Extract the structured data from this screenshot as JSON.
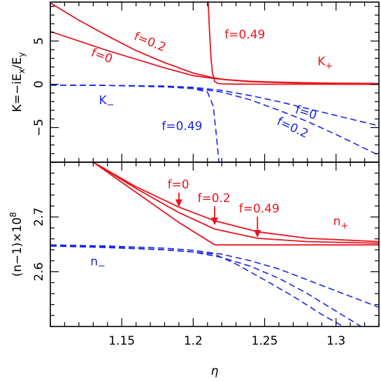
{
  "colors": {
    "K_plus": "#e8141e",
    "K_minus": "#1a26e6"
  },
  "chart_data": [
    {
      "type": "line",
      "ylabel": "K=−iE_x/E_y",
      "xlim": [
        1.1,
        1.33
      ],
      "ylim": [
        -9,
        9.5
      ],
      "yticks": [
        {
          "v": 5,
          "label": "5"
        },
        {
          "v": 0,
          "label": "0"
        },
        {
          "v": -5,
          "label": "−5"
        }
      ],
      "annotations": [
        {
          "text": "f=0.2",
          "x": 1.158,
          "y": 5.2,
          "rot": 22,
          "color": "red"
        },
        {
          "text": "f=0",
          "x": 1.128,
          "y": 3.3,
          "rot": 20,
          "color": "red"
        },
        {
          "text": "f=0.49",
          "x": 1.222,
          "y": 5.3,
          "rot": 0,
          "color": "red"
        },
        {
          "text": "K+",
          "x": 1.287,
          "y": 2.2,
          "rot": 0,
          "color": "red"
        },
        {
          "text": "K−",
          "x": 1.134,
          "y": -2.3,
          "rot": 0,
          "color": "blue"
        },
        {
          "text": "f=0",
          "x": 1.271,
          "y": -3.3,
          "rot": 18,
          "color": "blue"
        },
        {
          "text": "f=0.2",
          "x": 1.258,
          "y": -4.6,
          "rot": 25,
          "color": "blue"
        },
        {
          "text": "f=0.49",
          "x": 1.178,
          "y": -5.3,
          "rot": 0,
          "color": "blue"
        }
      ],
      "series": [
        {
          "style": "solid",
          "color": "red",
          "x": [
            1.1,
            1.12,
            1.14,
            1.16,
            1.18,
            1.2,
            1.213,
            1.222,
            1.24,
            1.26,
            1.28,
            1.3,
            1.33
          ],
          "y": [
            6.1,
            5.0,
            3.9,
            2.9,
            1.9,
            1.0,
            0.7,
            0.55,
            0.35,
            0.25,
            0.18,
            0.13,
            0.1
          ]
        },
        {
          "style": "solid",
          "color": "red",
          "x": [
            1.1,
            1.12,
            1.14,
            1.16,
            1.18,
            1.2,
            1.213,
            1.222,
            1.24,
            1.26,
            1.28,
            1.3,
            1.33
          ],
          "y": [
            9.4,
            7.4,
            5.6,
            3.9,
            2.5,
            1.3,
            0.8,
            0.55,
            0.3,
            0.2,
            0.13,
            0.09,
            0.06
          ]
        },
        {
          "style": "solid",
          "color": "red",
          "x": [
            1.2105,
            1.2115,
            1.2125,
            1.2135,
            1.215,
            1.217,
            1.22,
            1.23,
            1.25,
            1.28,
            1.33
          ],
          "y": [
            9.5,
            6.0,
            3.0,
            1.3,
            0.35,
            0.12,
            0.05,
            0.02,
            0.01,
            0.005,
            0.0
          ]
        },
        {
          "style": "dash",
          "color": "blue",
          "x": [
            1.1,
            1.14,
            1.18,
            1.2,
            1.22,
            1.24,
            1.26,
            1.28,
            1.3,
            1.33
          ],
          "y": [
            -0.1,
            -0.12,
            -0.2,
            -0.35,
            -0.7,
            -1.3,
            -2.0,
            -2.8,
            -3.6,
            -4.8
          ]
        },
        {
          "style": "dash",
          "color": "blue",
          "x": [
            1.1,
            1.14,
            1.18,
            1.2,
            1.22,
            1.24,
            1.26,
            1.28,
            1.3,
            1.33
          ],
          "y": [
            -0.1,
            -0.13,
            -0.25,
            -0.45,
            -0.9,
            -1.8,
            -3.0,
            -4.3,
            -5.8,
            -8.2
          ]
        },
        {
          "style": "dash",
          "color": "blue",
          "x": [
            1.1,
            1.14,
            1.18,
            1.2,
            1.21,
            1.214,
            1.216,
            1.218
          ],
          "y": [
            -0.1,
            -0.12,
            -0.3,
            -0.5,
            -0.9,
            -2.5,
            -5.5,
            -9.0
          ]
        }
      ]
    },
    {
      "type": "line",
      "xlabel": "η",
      "ylabel": "(n−1)×10^8",
      "xlim": [
        1.1,
        1.33
      ],
      "ylim": [
        2.5,
        2.8
      ],
      "xticks": [
        {
          "v": 1.15,
          "label": "1.15"
        },
        {
          "v": 1.2,
          "label": "1.2"
        },
        {
          "v": 1.25,
          "label": "1.25"
        },
        {
          "v": 1.3,
          "label": "1.3"
        }
      ],
      "yticks": [
        {
          "v": 2.7,
          "label": "2.7"
        },
        {
          "v": 2.6,
          "label": "2.6"
        }
      ],
      "annotations": [
        {
          "text": "f=0",
          "x": 1.182,
          "y": 2.752,
          "color": "red",
          "arrow_to": [
            1.19,
            2.718
          ]
        },
        {
          "text": "f=0.2",
          "x": 1.203,
          "y": 2.727,
          "color": "red",
          "arrow_to": [
            1.215,
            2.685
          ]
        },
        {
          "text": "f=0.49",
          "x": 1.232,
          "y": 2.708,
          "color": "red",
          "arrow_to": [
            1.245,
            2.662
          ]
        },
        {
          "text": "n+",
          "x": 1.298,
          "y": 2.685,
          "color": "red"
        },
        {
          "text": "n−",
          "x": 1.128,
          "y": 2.612,
          "color": "blue"
        }
      ],
      "series": [
        {
          "style": "solid",
          "color": "red",
          "x": [
            1.13,
            1.16,
            1.19,
            1.215,
            1.245,
            1.28,
            1.33
          ],
          "y": [
            2.8,
            2.755,
            2.718,
            2.693,
            2.673,
            2.661,
            2.655
          ]
        },
        {
          "style": "solid",
          "color": "red",
          "x": [
            1.13,
            1.16,
            1.19,
            1.215,
            1.245,
            1.28,
            1.33
          ],
          "y": [
            2.8,
            2.752,
            2.708,
            2.678,
            2.661,
            2.655,
            2.652
          ]
        },
        {
          "style": "solid",
          "color": "red",
          "x": [
            1.13,
            1.16,
            1.19,
            1.2145,
            1.216,
            1.25,
            1.33
          ],
          "y": [
            2.8,
            2.745,
            2.69,
            2.65,
            2.649,
            2.649,
            2.649
          ]
        },
        {
          "style": "dash",
          "color": "blue",
          "x": [
            1.1,
            1.14,
            1.18,
            1.2,
            1.22,
            1.24,
            1.26,
            1.28,
            1.3,
            1.33
          ],
          "y": [
            2.649,
            2.647,
            2.643,
            2.639,
            2.632,
            2.62,
            2.605,
            2.585,
            2.565,
            2.535
          ]
        },
        {
          "style": "dash",
          "color": "blue",
          "x": [
            1.1,
            1.14,
            1.18,
            1.2,
            1.22,
            1.24,
            1.26,
            1.28,
            1.3,
            1.33
          ],
          "y": [
            2.648,
            2.645,
            2.64,
            2.636,
            2.626,
            2.61,
            2.588,
            2.56,
            2.528,
            2.48
          ]
        },
        {
          "style": "dash",
          "color": "blue",
          "x": [
            1.1,
            1.14,
            1.18,
            1.2,
            1.215,
            1.23,
            1.25,
            1.27,
            1.29,
            1.305
          ],
          "y": [
            2.647,
            2.644,
            2.64,
            2.636,
            2.632,
            2.614,
            2.585,
            2.555,
            2.522,
            2.5
          ]
        }
      ]
    }
  ]
}
